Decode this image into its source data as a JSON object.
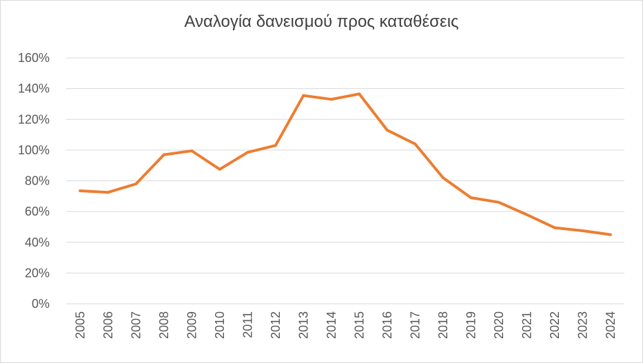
{
  "chart_data": {
    "type": "line",
    "title": "Αναλογία δανεισμού προς καταθέσεις",
    "xlabel": "",
    "ylabel": "",
    "x": [
      "2005",
      "2006",
      "2007",
      "2008",
      "2009",
      "2010",
      "2011",
      "2012",
      "2013",
      "2014",
      "2015",
      "2016",
      "2017",
      "2018",
      "2019",
      "2020",
      "2021",
      "2022",
      "2023",
      "2024"
    ],
    "series": [
      {
        "values": [
          73.5,
          72.5,
          78,
          97,
          99.5,
          87.5,
          98.5,
          103,
          135.5,
          133,
          136.5,
          113,
          104,
          82,
          69,
          66,
          58,
          49.5,
          47.5,
          45
        ],
        "color": "#ED7D31"
      }
    ],
    "y_ticks": [
      "0%",
      "20%",
      "40%",
      "60%",
      "80%",
      "100%",
      "120%",
      "140%",
      "160%"
    ],
    "ylim": [
      0,
      160
    ],
    "grid": true,
    "gridline_color": "#d9d9d9",
    "legend": "none"
  }
}
